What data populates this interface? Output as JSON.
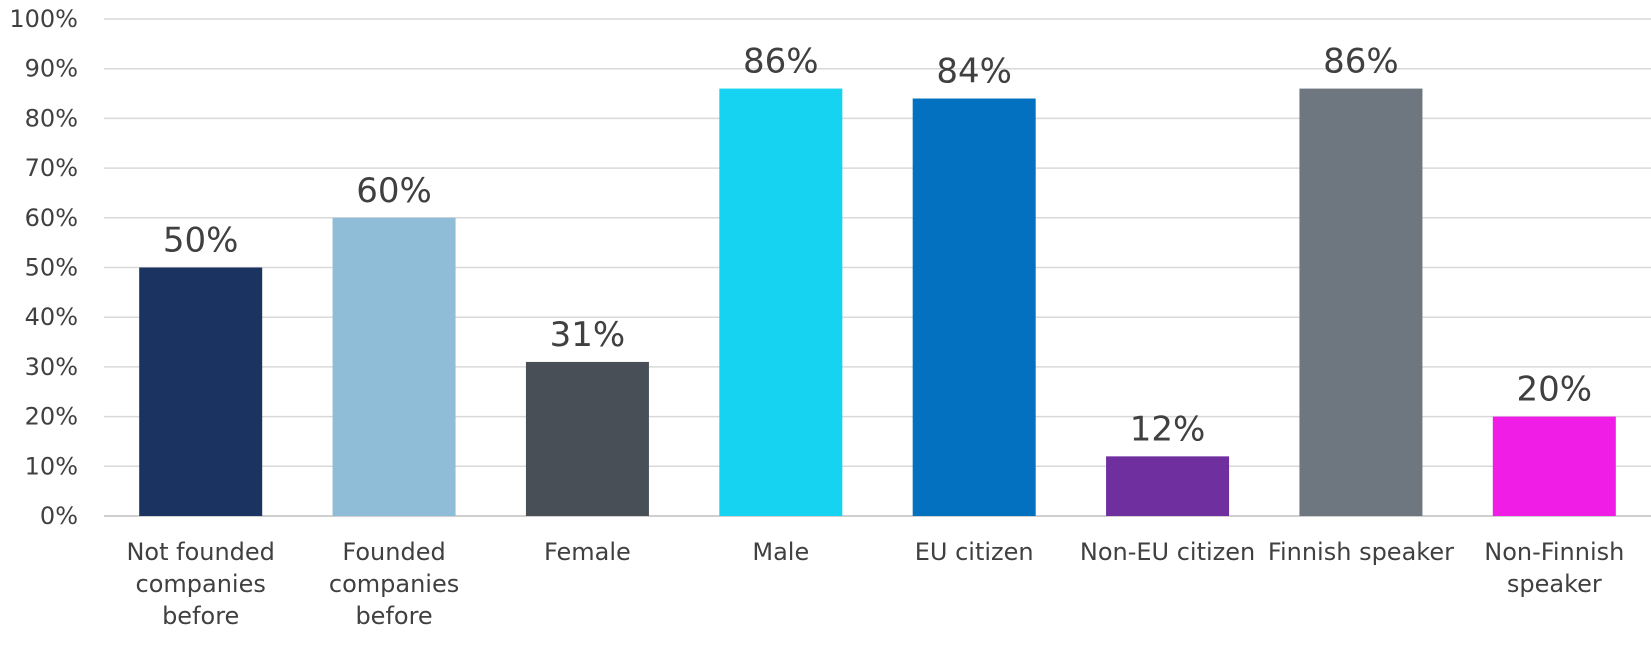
{
  "chart_data": {
    "type": "bar",
    "title": "",
    "xlabel": "",
    "ylabel": "",
    "ylim": [
      0,
      100
    ],
    "y_ticks": [
      "0%",
      "10%",
      "20%",
      "30%",
      "40%",
      "50%",
      "60%",
      "70%",
      "80%",
      "90%",
      "100%"
    ],
    "grid": true,
    "legend": "none",
    "categories": [
      [
        "Not founded",
        "companies",
        "before"
      ],
      [
        "Founded",
        "companies",
        "before"
      ],
      [
        "Female"
      ],
      [
        "Male"
      ],
      [
        "EU citizen"
      ],
      [
        "Non-EU citizen"
      ],
      [
        "Finnish speaker"
      ],
      [
        "Non-Finnish",
        "speaker"
      ]
    ],
    "values": [
      50,
      60,
      31,
      86,
      84,
      12,
      86,
      20
    ],
    "data_labels": [
      "50%",
      "60%",
      "31%",
      "86%",
      "84%",
      "12%",
      "86%",
      "20%"
    ],
    "colors": [
      "#1b3360",
      "#8fbcd6",
      "#484f57",
      "#16d3f2",
      "#0370c0",
      "#6f2f9f",
      "#6e7680",
      "#ef1de6"
    ]
  }
}
